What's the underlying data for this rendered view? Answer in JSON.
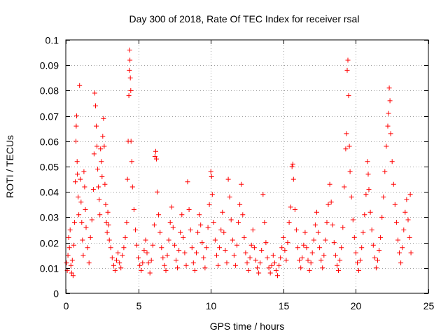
{
  "chart_data": {
    "type": "scatter",
    "title": "Day 300 of 2018, Rate Of TEC Index for receiver rsal",
    "xlabel": "GPS time / hours",
    "ylabel": "ROTI / TECUs",
    "xlim": [
      0,
      25
    ],
    "ylim": [
      0,
      0.1
    ],
    "x_ticks": [
      0,
      5,
      10,
      15,
      20,
      25
    ],
    "x_tick_labels": [
      "0",
      "5",
      "10",
      "15",
      "20",
      "25"
    ],
    "y_ticks": [
      0,
      0.01,
      0.02,
      0.03,
      0.04,
      0.05,
      0.06,
      0.07,
      0.08,
      0.09,
      0.1
    ],
    "y_tick_labels": [
      "0",
      "0.01",
      "0.02",
      "0.03",
      "0.04",
      "0.05",
      "0.06",
      "0.07",
      "0.08",
      "0.09",
      "0.1"
    ],
    "grid": true,
    "marker": "plus",
    "marker_color": "#ff0000",
    "series": [
      {
        "points": [
          [
            0.05,
            0.012
          ],
          [
            0.1,
            0.009
          ],
          [
            0.15,
            0.015
          ],
          [
            0.2,
            0.022
          ],
          [
            0.25,
            0.018
          ],
          [
            0.3,
            0.025
          ],
          [
            0.35,
            0.011
          ],
          [
            0.4,
            0.008
          ],
          [
            0.45,
            0.013
          ],
          [
            0.5,
            0.007
          ],
          [
            0.55,
            0.019
          ],
          [
            0.6,
            0.028
          ],
          [
            0.65,
            0.044
          ],
          [
            0.7,
            0.06
          ],
          [
            0.72,
            0.066
          ],
          [
            0.75,
            0.07
          ],
          [
            0.78,
            0.052
          ],
          [
            0.8,
            0.047
          ],
          [
            0.85,
            0.038
          ],
          [
            0.9,
            0.031
          ],
          [
            0.95,
            0.082
          ],
          [
            1.0,
            0.045
          ],
          [
            1.05,
            0.036
          ],
          [
            1.1,
            0.028
          ],
          [
            1.15,
            0.021
          ],
          [
            1.2,
            0.015
          ],
          [
            1.25,
            0.048
          ],
          [
            1.3,
            0.042
          ],
          [
            1.35,
            0.033
          ],
          [
            1.4,
            0.026
          ],
          [
            1.5,
            0.018
          ],
          [
            1.6,
            0.012
          ],
          [
            1.7,
            0.022
          ],
          [
            1.8,
            0.029
          ],
          [
            1.9,
            0.041
          ],
          [
            1.95,
            0.055
          ],
          [
            2.0,
            0.079
          ],
          [
            2.05,
            0.074
          ],
          [
            2.1,
            0.066
          ],
          [
            2.15,
            0.058
          ],
          [
            2.2,
            0.049
          ],
          [
            2.25,
            0.042
          ],
          [
            2.3,
            0.037
          ],
          [
            2.35,
            0.031
          ],
          [
            2.4,
            0.057
          ],
          [
            2.45,
            0.052
          ],
          [
            2.5,
            0.046
          ],
          [
            2.55,
            0.062
          ],
          [
            2.6,
            0.069
          ],
          [
            2.65,
            0.058
          ],
          [
            2.7,
            0.043
          ],
          [
            2.75,
            0.035
          ],
          [
            2.8,
            0.028
          ],
          [
            2.85,
            0.024
          ],
          [
            2.9,
            0.032
          ],
          [
            2.95,
            0.027
          ],
          [
            3.0,
            0.021
          ],
          [
            3.1,
            0.018
          ],
          [
            3.2,
            0.014
          ],
          [
            3.3,
            0.011
          ],
          [
            3.4,
            0.009
          ],
          [
            3.5,
            0.013
          ],
          [
            3.6,
            0.016
          ],
          [
            3.7,
            0.012
          ],
          [
            3.8,
            0.01
          ],
          [
            3.9,
            0.015
          ],
          [
            4.0,
            0.018
          ],
          [
            4.1,
            0.022
          ],
          [
            4.2,
            0.028
          ],
          [
            4.25,
            0.045
          ],
          [
            4.3,
            0.06
          ],
          [
            4.35,
            0.078
          ],
          [
            4.38,
            0.088
          ],
          [
            4.4,
            0.096
          ],
          [
            4.42,
            0.092
          ],
          [
            4.45,
            0.085
          ],
          [
            4.48,
            0.08
          ],
          [
            4.5,
            0.06
          ],
          [
            4.55,
            0.052
          ],
          [
            4.6,
            0.042
          ],
          [
            4.7,
            0.033
          ],
          [
            4.8,
            0.025
          ],
          [
            4.9,
            0.019
          ],
          [
            5.0,
            0.014
          ],
          [
            5.1,
            0.011
          ],
          [
            5.2,
            0.009
          ],
          [
            5.3,
            0.012
          ],
          [
            5.4,
            0.017
          ],
          [
            5.5,
            0.021
          ],
          [
            5.6,
            0.016
          ],
          [
            5.7,
            0.012
          ],
          [
            5.8,
            0.008
          ],
          [
            5.9,
            0.013
          ],
          [
            6.0,
            0.019
          ],
          [
            6.1,
            0.027
          ],
          [
            6.15,
            0.054
          ],
          [
            6.2,
            0.056
          ],
          [
            6.25,
            0.053
          ],
          [
            6.3,
            0.04
          ],
          [
            6.4,
            0.031
          ],
          [
            6.5,
            0.024
          ],
          [
            6.6,
            0.018
          ],
          [
            6.7,
            0.014
          ],
          [
            6.8,
            0.011
          ],
          [
            6.9,
            0.009
          ],
          [
            7.0,
            0.015
          ],
          [
            7.1,
            0.021
          ],
          [
            7.2,
            0.028
          ],
          [
            7.3,
            0.034
          ],
          [
            7.4,
            0.026
          ],
          [
            7.5,
            0.019
          ],
          [
            7.6,
            0.013
          ],
          [
            7.7,
            0.01
          ],
          [
            7.8,
            0.017
          ],
          [
            7.9,
            0.024
          ],
          [
            8.0,
            0.031
          ],
          [
            8.1,
            0.022
          ],
          [
            8.2,
            0.016
          ],
          [
            8.3,
            0.011
          ],
          [
            8.4,
            0.044
          ],
          [
            8.5,
            0.033
          ],
          [
            8.6,
            0.025
          ],
          [
            8.7,
            0.018
          ],
          [
            8.8,
            0.012
          ],
          [
            8.9,
            0.009
          ],
          [
            9.0,
            0.016
          ],
          [
            9.1,
            0.024
          ],
          [
            9.2,
            0.031
          ],
          [
            9.3,
            0.027
          ],
          [
            9.4,
            0.02
          ],
          [
            9.5,
            0.014
          ],
          [
            9.6,
            0.01
          ],
          [
            9.7,
            0.018
          ],
          [
            9.8,
            0.026
          ],
          [
            9.9,
            0.035
          ],
          [
            10.0,
            0.048
          ],
          [
            10.05,
            0.046
          ],
          [
            10.1,
            0.039
          ],
          [
            10.2,
            0.028
          ],
          [
            10.3,
            0.021
          ],
          [
            10.4,
            0.015
          ],
          [
            10.5,
            0.011
          ],
          [
            10.6,
            0.018
          ],
          [
            10.7,
            0.025
          ],
          [
            10.8,
            0.032
          ],
          [
            10.9,
            0.024
          ],
          [
            11.0,
            0.017
          ],
          [
            11.1,
            0.012
          ],
          [
            11.2,
            0.045
          ],
          [
            11.3,
            0.038
          ],
          [
            11.4,
            0.029
          ],
          [
            11.5,
            0.021
          ],
          [
            11.6,
            0.015
          ],
          [
            11.7,
            0.011
          ],
          [
            11.8,
            0.019
          ],
          [
            11.9,
            0.028
          ],
          [
            12.0,
            0.035
          ],
          [
            12.1,
            0.043
          ],
          [
            12.2,
            0.031
          ],
          [
            12.3,
            0.022
          ],
          [
            12.4,
            0.016
          ],
          [
            12.5,
            0.012
          ],
          [
            12.6,
            0.009
          ],
          [
            12.7,
            0.014
          ],
          [
            12.8,
            0.019
          ],
          [
            12.9,
            0.025
          ],
          [
            13.0,
            0.018
          ],
          [
            13.1,
            0.013
          ],
          [
            13.2,
            0.01
          ],
          [
            13.3,
            0.008
          ],
          [
            13.4,
            0.012
          ],
          [
            13.5,
            0.017
          ],
          [
            13.6,
            0.039
          ],
          [
            13.7,
            0.028
          ],
          [
            13.8,
            0.02
          ],
          [
            13.9,
            0.014
          ],
          [
            14.0,
            0.01
          ],
          [
            14.1,
            0.008
          ],
          [
            14.2,
            0.011
          ],
          [
            14.3,
            0.015
          ],
          [
            14.4,
            0.012
          ],
          [
            14.5,
            0.009
          ],
          [
            14.6,
            0.007
          ],
          [
            14.7,
            0.011
          ],
          [
            14.8,
            0.014
          ],
          [
            14.9,
            0.018
          ],
          [
            15.0,
            0.022
          ],
          [
            15.1,
            0.017
          ],
          [
            15.2,
            0.013
          ],
          [
            15.3,
            0.02
          ],
          [
            15.4,
            0.028
          ],
          [
            15.5,
            0.034
          ],
          [
            15.6,
            0.05
          ],
          [
            15.65,
            0.051
          ],
          [
            15.7,
            0.045
          ],
          [
            15.8,
            0.033
          ],
          [
            15.9,
            0.025
          ],
          [
            16.0,
            0.018
          ],
          [
            16.1,
            0.013
          ],
          [
            16.2,
            0.01
          ],
          [
            16.3,
            0.014
          ],
          [
            16.4,
            0.019
          ],
          [
            16.5,
            0.024
          ],
          [
            16.6,
            0.018
          ],
          [
            16.7,
            0.013
          ],
          [
            16.8,
            0.009
          ],
          [
            16.9,
            0.012
          ],
          [
            17.0,
            0.016
          ],
          [
            17.1,
            0.021
          ],
          [
            17.2,
            0.027
          ],
          [
            17.3,
            0.032
          ],
          [
            17.4,
            0.024
          ],
          [
            17.5,
            0.018
          ],
          [
            17.6,
            0.013
          ],
          [
            17.7,
            0.01
          ],
          [
            17.8,
            0.015
          ],
          [
            17.9,
            0.021
          ],
          [
            18.0,
            0.028
          ],
          [
            18.1,
            0.035
          ],
          [
            18.2,
            0.043
          ],
          [
            18.3,
            0.036
          ],
          [
            18.4,
            0.027
          ],
          [
            18.5,
            0.02
          ],
          [
            18.6,
            0.015
          ],
          [
            18.7,
            0.011
          ],
          [
            18.8,
            0.009
          ],
          [
            18.9,
            0.013
          ],
          [
            19.0,
            0.018
          ],
          [
            19.1,
            0.026
          ],
          [
            19.2,
            0.042
          ],
          [
            19.3,
            0.057
          ],
          [
            19.35,
            0.063
          ],
          [
            19.4,
            0.088
          ],
          [
            19.45,
            0.092
          ],
          [
            19.5,
            0.078
          ],
          [
            19.55,
            0.058
          ],
          [
            19.6,
            0.048
          ],
          [
            19.7,
            0.038
          ],
          [
            19.8,
            0.029
          ],
          [
            19.9,
            0.022
          ],
          [
            20.0,
            0.016
          ],
          [
            20.1,
            0.012
          ],
          [
            20.2,
            0.009
          ],
          [
            20.3,
            0.013
          ],
          [
            20.4,
            0.018
          ],
          [
            20.5,
            0.024
          ],
          [
            20.6,
            0.031
          ],
          [
            20.7,
            0.039
          ],
          [
            20.8,
            0.052
          ],
          [
            20.85,
            0.047
          ],
          [
            20.9,
            0.041
          ],
          [
            21.0,
            0.032
          ],
          [
            21.1,
            0.025
          ],
          [
            21.2,
            0.019
          ],
          [
            21.3,
            0.014
          ],
          [
            21.4,
            0.01
          ],
          [
            21.5,
            0.013
          ],
          [
            21.6,
            0.017
          ],
          [
            21.7,
            0.022
          ],
          [
            21.8,
            0.03
          ],
          [
            21.9,
            0.038
          ],
          [
            22.0,
            0.048
          ],
          [
            22.1,
            0.058
          ],
          [
            22.2,
            0.066
          ],
          [
            22.25,
            0.071
          ],
          [
            22.3,
            0.081
          ],
          [
            22.35,
            0.076
          ],
          [
            22.4,
            0.063
          ],
          [
            22.5,
            0.052
          ],
          [
            22.6,
            0.043
          ],
          [
            22.7,
            0.035
          ],
          [
            22.8,
            0.028
          ],
          [
            22.9,
            0.021
          ],
          [
            23.0,
            0.016
          ],
          [
            23.1,
            0.012
          ],
          [
            23.2,
            0.018
          ],
          [
            23.3,
            0.025
          ],
          [
            23.4,
            0.032
          ],
          [
            23.5,
            0.037
          ],
          [
            23.6,
            0.029
          ],
          [
            23.7,
            0.022
          ],
          [
            23.75,
            0.039
          ],
          [
            23.8,
            0.016
          ]
        ]
      }
    ]
  }
}
